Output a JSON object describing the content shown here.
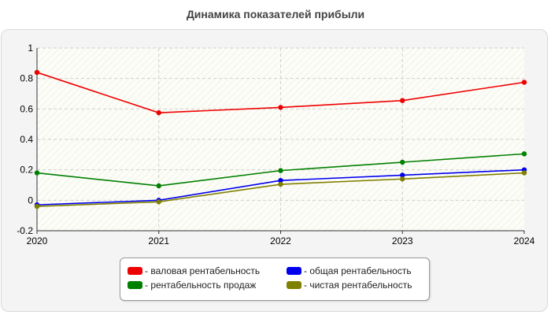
{
  "chart_data": {
    "type": "line",
    "title": "Динамика показателей прибыли",
    "xlabel": "",
    "ylabel": "",
    "x": [
      "2020",
      "2021",
      "2022",
      "2023",
      "2024"
    ],
    "ylim": [
      -0.2,
      1
    ],
    "yticks": [
      "-0.2",
      "0",
      "0.2",
      "0.4",
      "0.6",
      "0.8",
      "1"
    ],
    "grid": true,
    "legend_position": "bottom",
    "series": [
      {
        "name": "- валовая рентабельность",
        "color": "#ee0000",
        "values": [
          0.84,
          0.575,
          0.61,
          0.655,
          0.775
        ]
      },
      {
        "name": "- общая рентабельность",
        "color": "#0000ee",
        "values": [
          -0.03,
          0.0,
          0.13,
          0.165,
          0.2
        ]
      },
      {
        "name": "- рентабельность продаж",
        "color": "#008000",
        "values": [
          0.18,
          0.095,
          0.195,
          0.25,
          0.305
        ]
      },
      {
        "name": "- чистая рентабельность",
        "color": "#808000",
        "values": [
          -0.04,
          -0.01,
          0.105,
          0.14,
          0.18
        ]
      }
    ]
  }
}
